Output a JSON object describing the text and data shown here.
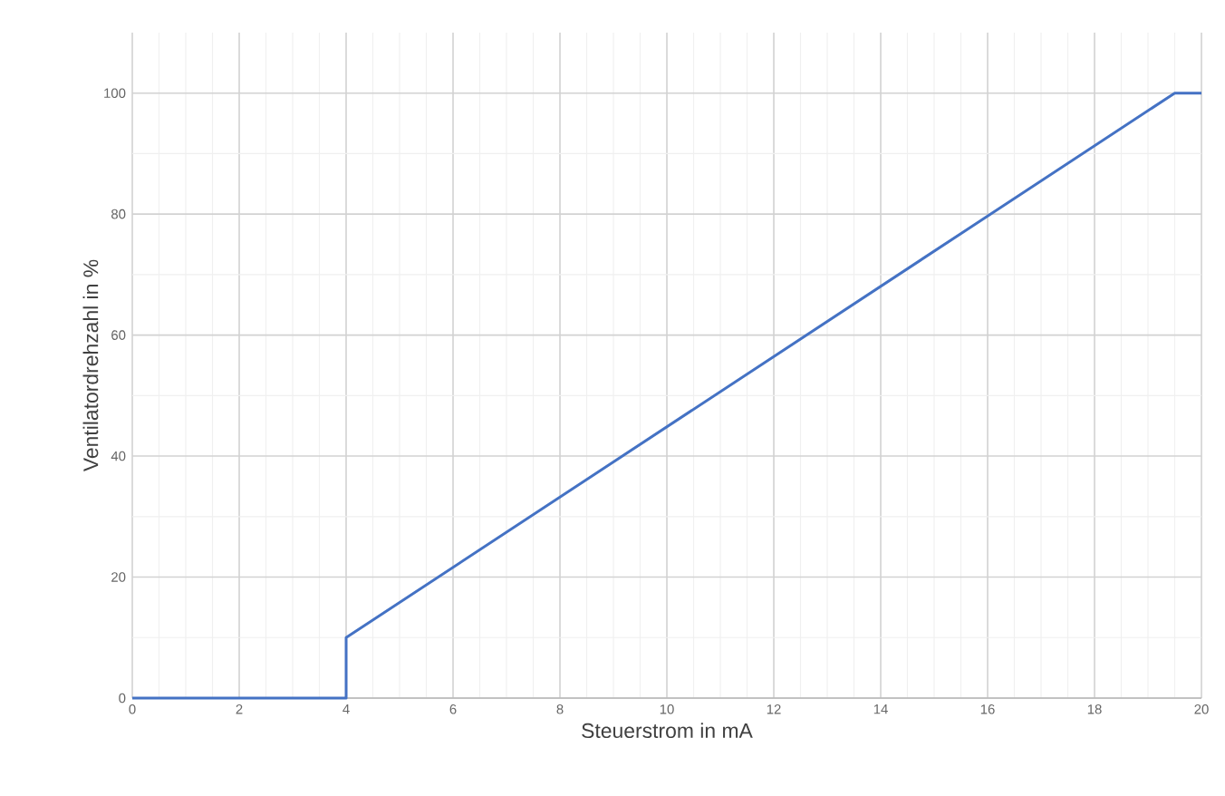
{
  "chart_data": {
    "type": "line",
    "xlabel": "Steuerstrom in mA",
    "ylabel": "Ventilatordrehzahl in %",
    "x": [
      0,
      4,
      4,
      19.5,
      20
    ],
    "series": [
      {
        "color": "#4472c4",
        "values": [
          0,
          0,
          10,
          100,
          100
        ]
      }
    ],
    "xlim": [
      0,
      20
    ],
    "ylim": [
      0,
      110
    ],
    "xticks": [
      0,
      2,
      4,
      6,
      8,
      10,
      12,
      14,
      16,
      18,
      20
    ],
    "yticks": [
      0,
      20,
      40,
      60,
      80,
      100
    ],
    "grid": true,
    "marker": "none",
    "line_style": "solid"
  }
}
